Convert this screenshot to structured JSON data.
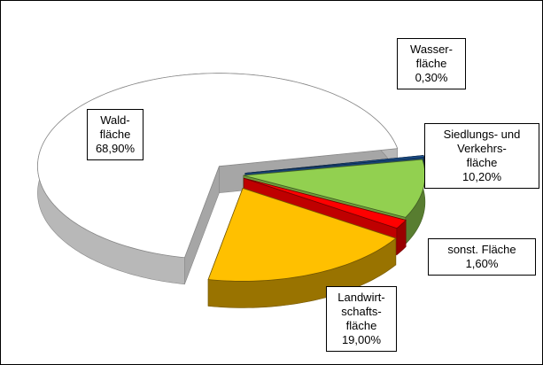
{
  "chart_data": {
    "type": "pie",
    "categories": [
      "Wasser-\nfläche",
      "Siedlungs- und\nVerkehrs-\nfläche",
      "sonst. Fläche",
      "Landwirt-\nschafts-\nfläche",
      "Wald-\nfläche"
    ],
    "values": [
      0.3,
      10.2,
      1.6,
      19.0,
      68.9
    ],
    "value_labels": [
      "0,30%",
      "10,20%",
      "1,60%",
      "19,00%",
      "68,90%"
    ],
    "colors": [
      "#1f5aa0",
      "#92d050",
      "#ff0000",
      "#ffc000",
      "#ffffff"
    ]
  }
}
